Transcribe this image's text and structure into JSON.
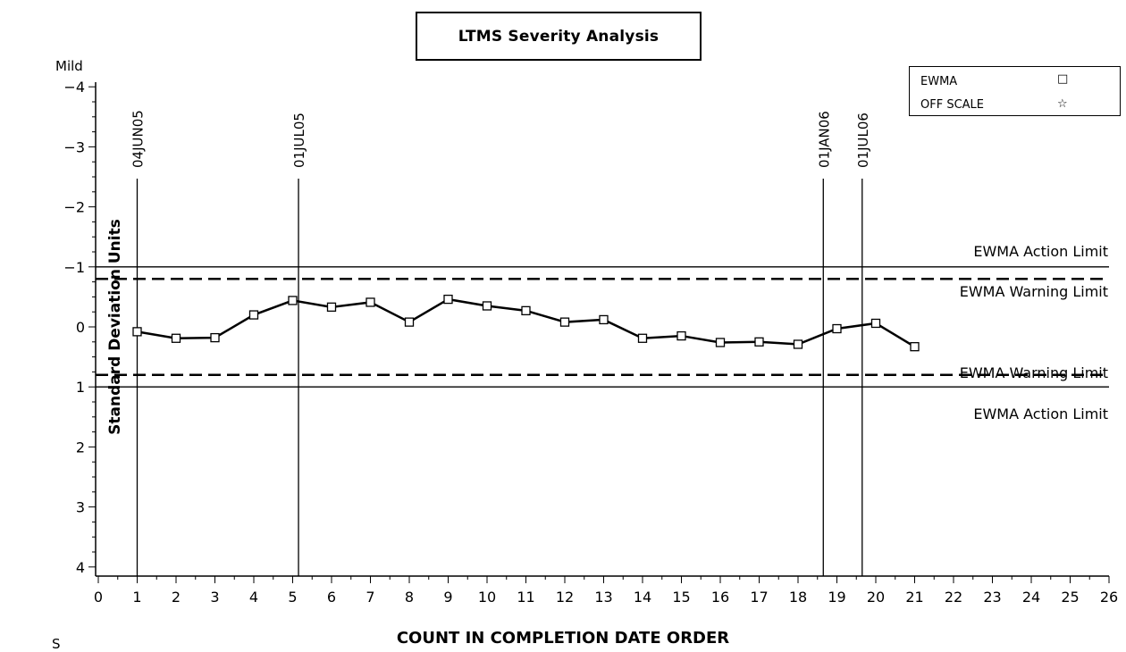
{
  "chart_data": {
    "type": "line",
    "title": "LTMS Severity Analysis",
    "xlabel": "COUNT IN COMPLETION DATE ORDER",
    "ylabel": "Standard Deviation Units",
    "y_top_label": "Mild",
    "corner_label": "S",
    "xlim": [
      0,
      26
    ],
    "ylim": [
      -4,
      4
    ],
    "y_inverted": true,
    "x_ticks": [
      0,
      1,
      2,
      3,
      4,
      5,
      6,
      7,
      8,
      9,
      10,
      11,
      12,
      13,
      14,
      15,
      16,
      17,
      18,
      19,
      20,
      21,
      22,
      23,
      24,
      25,
      26
    ],
    "y_ticks": [
      -4,
      -3,
      -2,
      -1,
      0,
      1,
      2,
      3,
      4
    ],
    "y_tick_labels": [
      "−4",
      "−3",
      "−2",
      "−1",
      "0",
      "1",
      "2",
      "3",
      "4"
    ],
    "series": [
      {
        "name": "EWMA",
        "marker": "square",
        "x": [
          1,
          2,
          3,
          4,
          5,
          6,
          7,
          8,
          9,
          10,
          11,
          12,
          13,
          14,
          15,
          16,
          17,
          18,
          19,
          20,
          21
        ],
        "values": [
          0.08,
          0.19,
          0.18,
          -0.2,
          -0.44,
          -0.33,
          -0.41,
          -0.08,
          -0.46,
          -0.35,
          -0.27,
          -0.08,
          -0.12,
          0.19,
          0.15,
          0.26,
          0.25,
          0.29,
          0.03,
          -0.06,
          0.33
        ]
      }
    ],
    "legend": {
      "placement": "top-right",
      "items": [
        {
          "label": "EWMA",
          "symbol": "□"
        },
        {
          "label": "OFF SCALE",
          "symbol": "☆"
        }
      ]
    },
    "reference_lines": [
      {
        "label": "EWMA Action Limit",
        "y": -1,
        "style": "solid"
      },
      {
        "label": "EWMA Warning Limit",
        "y": -0.8,
        "style": "dashed"
      },
      {
        "label": "EWMA Warning Limit",
        "y": 0.8,
        "style": "dashed"
      },
      {
        "label": "EWMA Action Limit",
        "y": 1,
        "style": "solid"
      }
    ],
    "date_markers": [
      {
        "label": "04JUN05",
        "x": 1.0
      },
      {
        "label": "01JUL05",
        "x": 5.15
      },
      {
        "label": "01JAN06",
        "x": 18.65
      },
      {
        "label": "01JUL06",
        "x": 19.65
      }
    ],
    "grid": false
  }
}
